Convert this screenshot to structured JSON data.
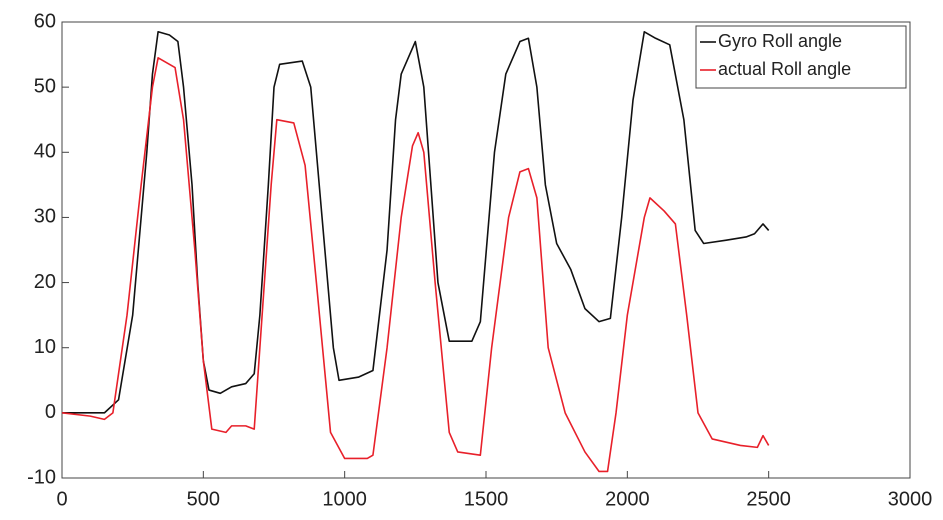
{
  "chart_data": {
    "type": "line",
    "xlim": [
      0,
      3000
    ],
    "xticks": [
      0,
      500,
      1000,
      1500,
      2000,
      2500,
      3000
    ],
    "ylim": [
      -10,
      60
    ],
    "yticks": [
      -10,
      0,
      10,
      20,
      30,
      40,
      50,
      60
    ],
    "grid": false,
    "legend": "top-right",
    "series": [
      {
        "name": "Gyro Roll angle",
        "color": "#111111",
        "x": [
          0,
          150,
          200,
          250,
          300,
          320,
          340,
          380,
          410,
          430,
          460,
          480,
          500,
          520,
          560,
          600,
          650,
          680,
          700,
          730,
          750,
          770,
          850,
          880,
          920,
          960,
          980,
          1050,
          1100,
          1150,
          1180,
          1200,
          1250,
          1280,
          1330,
          1370,
          1450,
          1480,
          1530,
          1570,
          1620,
          1650,
          1680,
          1710,
          1750,
          1800,
          1850,
          1900,
          1940,
          1980,
          2020,
          2060,
          2100,
          2150,
          2200,
          2240,
          2270,
          2350,
          2420,
          2450,
          2480,
          2500
        ],
        "values": [
          0,
          0,
          2,
          15,
          40,
          52,
          58.5,
          58,
          57,
          50,
          35,
          20,
          8,
          3.5,
          3,
          4,
          4.5,
          6,
          15,
          35,
          50,
          53.5,
          54,
          50,
          30,
          10,
          5,
          5.5,
          6.5,
          25,
          45,
          52,
          57,
          50,
          20,
          11,
          11,
          14,
          40,
          52,
          57,
          57.5,
          50,
          35,
          26,
          22,
          16,
          14,
          14.5,
          30,
          48,
          58.5,
          57.5,
          56.5,
          45,
          28,
          26,
          26.5,
          27,
          27.5,
          29,
          28
        ]
      },
      {
        "name": "actual Roll angle",
        "color": "#e8202a",
        "x": [
          0,
          100,
          150,
          180,
          230,
          280,
          320,
          340,
          400,
          430,
          470,
          500,
          530,
          580,
          600,
          650,
          680,
          700,
          740,
          760,
          820,
          860,
          900,
          950,
          1000,
          1080,
          1100,
          1150,
          1200,
          1240,
          1260,
          1280,
          1320,
          1370,
          1400,
          1480,
          1520,
          1580,
          1620,
          1650,
          1680,
          1720,
          1780,
          1850,
          1900,
          1930,
          1960,
          2000,
          2060,
          2080,
          2130,
          2170,
          2210,
          2250,
          2300,
          2400,
          2460,
          2480,
          2500
        ],
        "values": [
          0,
          -0.5,
          -1,
          0,
          15,
          35,
          50,
          54.5,
          53,
          45,
          25,
          8,
          -2.5,
          -3,
          -2,
          -2,
          -2.5,
          10,
          35,
          45,
          44.5,
          38,
          20,
          -3,
          -7,
          -7,
          -6.5,
          10,
          30,
          41,
          43,
          40,
          20,
          -3,
          -6,
          -6.5,
          10,
          30,
          37,
          37.5,
          33,
          10,
          0,
          -6,
          -9,
          -9,
          0,
          15,
          30,
          33,
          31,
          29,
          15,
          0,
          -4,
          -5,
          -5.3,
          -3.5,
          -5
        ]
      }
    ]
  }
}
